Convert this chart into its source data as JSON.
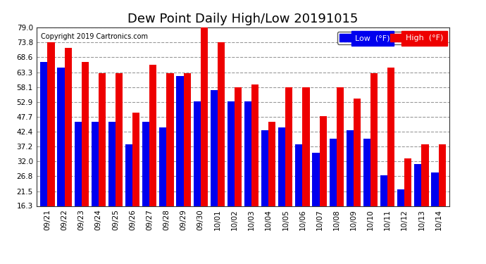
{
  "title": "Dew Point Daily High/Low 20191015",
  "copyright": "Copyright 2019 Cartronics.com",
  "dates": [
    "09/21",
    "09/22",
    "09/23",
    "09/24",
    "09/25",
    "09/26",
    "09/27",
    "09/28",
    "09/29",
    "09/30",
    "10/01",
    "10/02",
    "10/03",
    "10/04",
    "10/05",
    "10/06",
    "10/07",
    "10/08",
    "10/09",
    "10/10",
    "10/11",
    "10/12",
    "10/13",
    "10/14"
  ],
  "low_values": [
    67.0,
    65.0,
    46.0,
    46.0,
    46.0,
    38.0,
    46.0,
    44.0,
    62.0,
    53.0,
    57.0,
    53.0,
    53.0,
    43.0,
    44.0,
    38.0,
    35.0,
    40.0,
    43.0,
    40.0,
    27.0,
    22.0,
    31.0,
    28.0
  ],
  "high_values": [
    74.0,
    72.0,
    67.0,
    63.0,
    63.0,
    49.0,
    66.0,
    63.0,
    63.0,
    80.0,
    74.0,
    58.0,
    59.0,
    46.0,
    58.0,
    58.0,
    48.0,
    58.0,
    54.0,
    63.0,
    65.0,
    33.0,
    38.0,
    38.0
  ],
  "bar_color_low": "#0000ee",
  "bar_color_high": "#ee0000",
  "bg_color": "#ffffff",
  "plot_bg_color": "#ffffff",
  "grid_color": "#999999",
  "yticks": [
    16.3,
    21.5,
    26.8,
    32.0,
    37.2,
    42.4,
    47.7,
    52.9,
    58.1,
    63.3,
    68.6,
    73.8,
    79.0
  ],
  "ymin": 16.3,
  "ymax": 79.0,
  "title_fontsize": 13,
  "legend_low_label": "Low  (°F)",
  "legend_high_label": "High  (°F)"
}
